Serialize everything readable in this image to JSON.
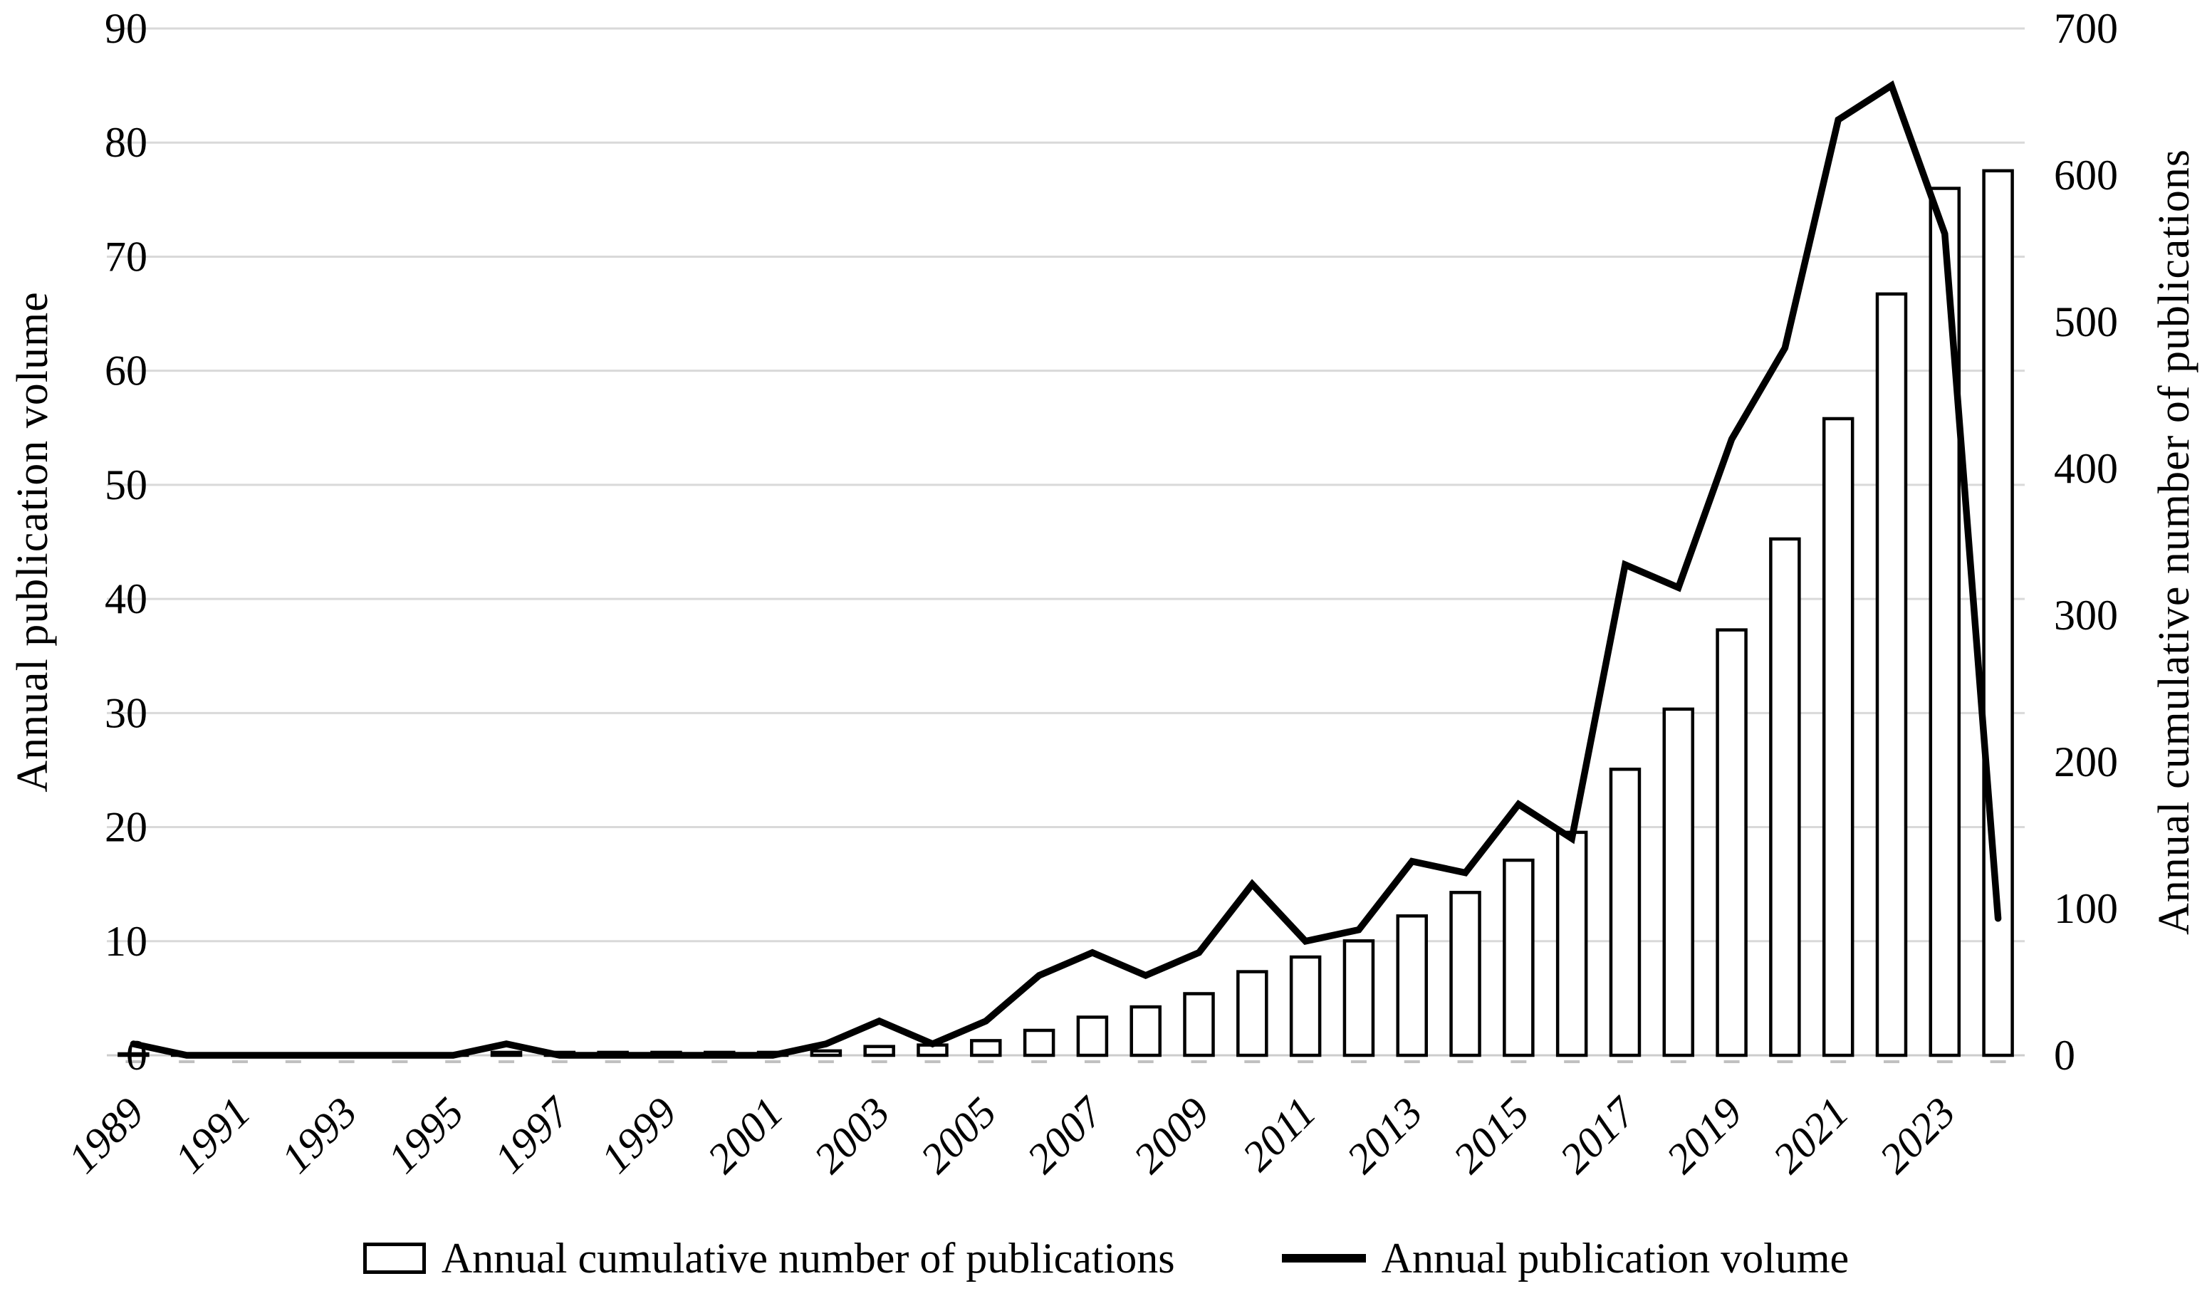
{
  "chart_data": {
    "type": "combo-bar-line",
    "categories": [
      "1989",
      "1990",
      "1991",
      "1992",
      "1993",
      "1994",
      "1995",
      "1996",
      "1997",
      "1998",
      "1999",
      "2000",
      "2001",
      "2002",
      "2003",
      "2004",
      "2005",
      "2006",
      "2007",
      "2008",
      "2009",
      "2010",
      "2011",
      "2012",
      "2013",
      "2014",
      "2015",
      "2016",
      "2017",
      "2018",
      "2019",
      "2020",
      "2021",
      "2022",
      "2023",
      "2024"
    ],
    "series": [
      {
        "name": "Annual cumulative number of publications",
        "type": "bar",
        "axis": "right",
        "values": [
          1,
          1,
          1,
          1,
          1,
          1,
          1,
          2,
          2,
          2,
          2,
          2,
          2,
          3,
          6,
          7,
          10,
          17,
          26,
          33,
          42,
          57,
          67,
          78,
          95,
          111,
          133,
          152,
          195,
          236,
          290,
          352,
          434,
          519,
          591,
          603
        ]
      },
      {
        "name": "Annual publication volume",
        "type": "line",
        "axis": "left",
        "values": [
          1,
          0,
          0,
          0,
          0,
          0,
          0,
          1,
          0,
          0,
          0,
          0,
          0,
          1,
          3,
          1,
          3,
          7,
          9,
          7,
          9,
          15,
          10,
          11,
          17,
          16,
          22,
          19,
          43,
          41,
          54,
          62,
          82,
          85,
          72,
          12
        ]
      }
    ],
    "left_axis": {
      "title": "Annual publication volume",
      "min": 0,
      "max": 90,
      "step": 10,
      "tick_labels": [
        "0",
        "10",
        "20",
        "30",
        "40",
        "50",
        "60",
        "70",
        "80",
        "90"
      ]
    },
    "right_axis": {
      "title": "Annual cumulative number of publications",
      "min": 0,
      "max": 700,
      "step": 100,
      "tick_labels": [
        "0",
        "100",
        "200",
        "300",
        "400",
        "500",
        "600",
        "700"
      ]
    },
    "x_axis": {
      "tick_labels": [
        "1989",
        "1991",
        "1993",
        "1995",
        "1997",
        "1999",
        "2001",
        "2003",
        "2005",
        "2007",
        "2009",
        "2011",
        "2013",
        "2015",
        "2017",
        "2019",
        "2021",
        "2023"
      ],
      "label_rotation_deg": -45
    },
    "legend": [
      {
        "label": "Annual cumulative number of publications",
        "marker": "bar"
      },
      {
        "label": "Annual publication volume",
        "marker": "line"
      }
    ],
    "grid": true,
    "legend_position": "bottom",
    "colors": {
      "line": "#000000",
      "bar_fill": "#ffffff",
      "bar_stroke": "#000000",
      "gridline": "#d9d9d9",
      "axis_line": "#cccccc",
      "tick_mark": "#c0c0c0",
      "text": "#000000",
      "background": "#ffffff"
    }
  }
}
